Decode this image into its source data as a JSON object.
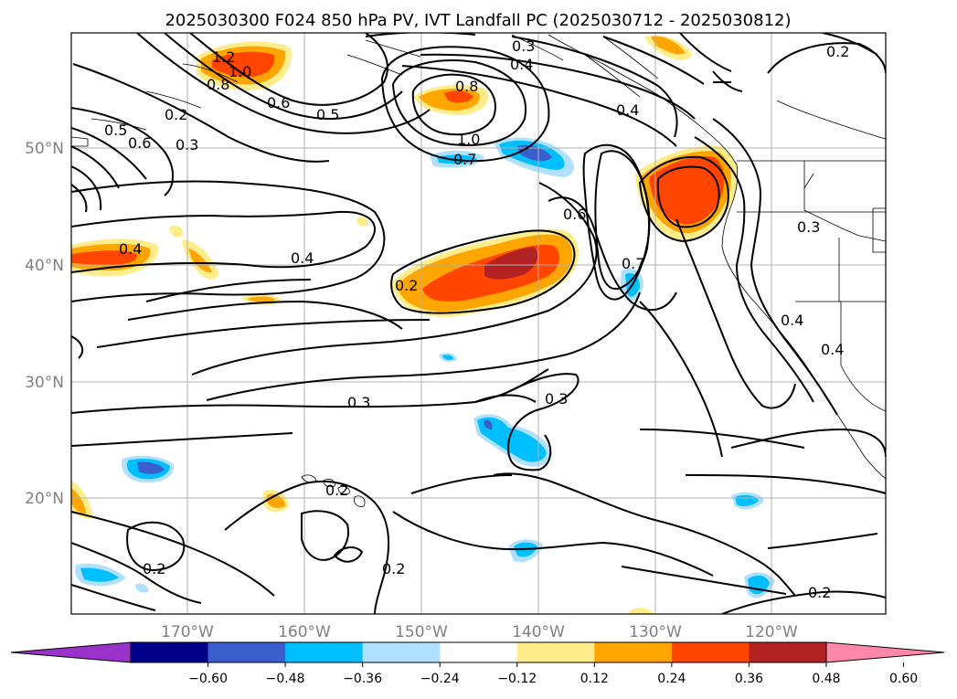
{
  "title": "2025030300 F024 850 hPa PV, IVT Landfall PC (2025030712 - 2025030812)",
  "lat_labels": [
    "50°N",
    "40°N",
    "30°N",
    "20°N"
  ],
  "lon_labels": [
    "170°W",
    "160°W",
    "150°W",
    "140°W",
    "130°W",
    "120°W"
  ],
  "colorbar": {
    "tick_labels": [
      "−0.60",
      "−0.48",
      "−0.36",
      "−0.24",
      "−0.12",
      "0.12",
      "0.24",
      "0.36",
      "0.48",
      "0.60"
    ],
    "colors": [
      "#9933cc",
      "#00008b",
      "#3a5fcd",
      "#00bfff",
      "#b0e0ff",
      "#ffffff",
      "#ffec8b",
      "#ffa500",
      "#ff4500",
      "#b22222",
      "#ff88aa"
    ]
  },
  "contour_labels": {
    "c1": "0.2",
    "c2": "0.3",
    "c3": "0.4",
    "c4": "0.5",
    "c5": "0.6",
    "c6": "0.8",
    "c7": "1.0",
    "c8": "0.7",
    "c9": "0.2",
    "c10": "0.6",
    "c11": "0.4",
    "c12": "0.2",
    "c13": "0.3",
    "c14": "0.3",
    "c15": "0.2",
    "c16": "0.2",
    "c17": "0.2",
    "c18": "0.3",
    "c19": "0.4",
    "c20": "0.4",
    "c21": "0.7",
    "c22": "0.5",
    "c23": "0.6",
    "c24": "0.3",
    "c25": "0.2",
    "c26": "0.4",
    "c27": "1.2",
    "c28": "1.0",
    "c29": "0.8",
    "c30": "0.4"
  }
}
